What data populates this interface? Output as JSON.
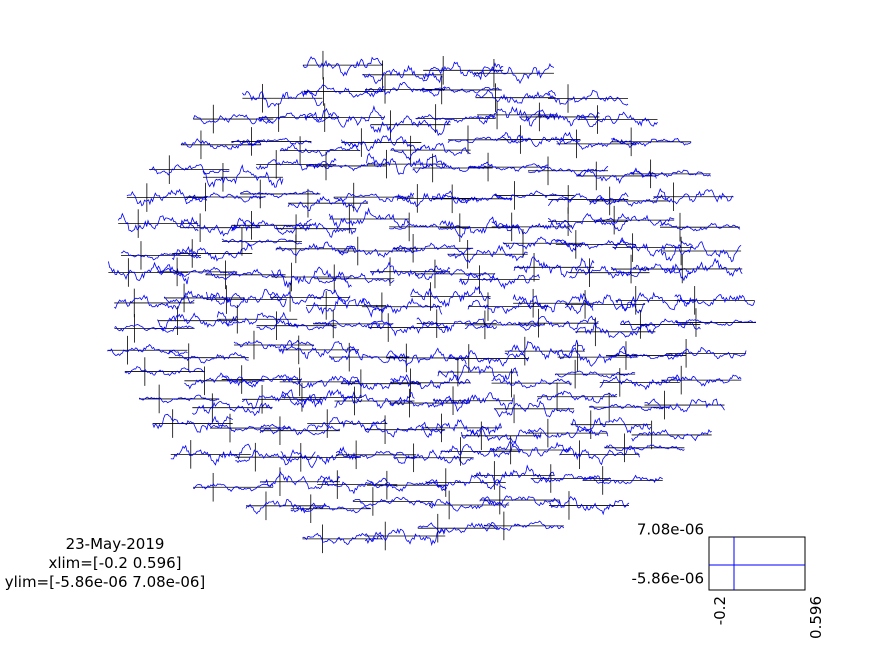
{
  "chart_data": {
    "type": "line",
    "description_text": {
      "date": "23-May-2019",
      "xlim_label": "xlim=[-0.2 0.596]",
      "ylim_label": "ylim=[-5.86e-06 7.08e-06]"
    },
    "xlim": [
      -0.2,
      0.596
    ],
    "ylim": [
      -5.86e-06,
      7.08e-06
    ],
    "scale_box": {
      "y_top_label": "7.08e-06",
      "y_bottom_label": "-5.86e-06",
      "x_left_label": "-0.2",
      "x_right_label": "0.596"
    },
    "series_color": "#0000ff",
    "axis_color": "#000000",
    "num_channels": 306,
    "layout": "sensor topography (MEG channel layout)"
  }
}
